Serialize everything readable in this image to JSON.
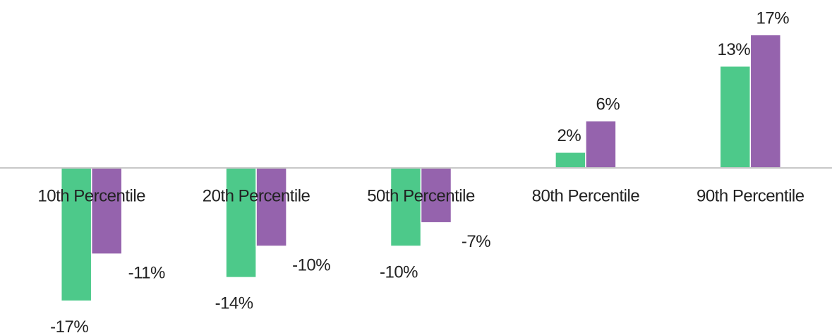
{
  "chart_data": {
    "type": "bar",
    "categories": [
      "10th Percentile",
      "20th Percentile",
      "50th Percentile",
      "80th Percentile",
      "90th Percentile"
    ],
    "series": [
      {
        "color": "#4dc98a",
        "values": [
          -17,
          -14,
          -10,
          2,
          13
        ],
        "value_labels": [
          "-17%",
          "-14%",
          "-10%",
          "2%",
          "13%"
        ]
      },
      {
        "color": "#9563ad",
        "values": [
          -11,
          -10,
          -7,
          6,
          17
        ],
        "value_labels": [
          "-11%",
          "-10%",
          "-7%",
          "6%",
          "17%"
        ]
      }
    ],
    "ylim": [
      -20,
      20
    ]
  }
}
